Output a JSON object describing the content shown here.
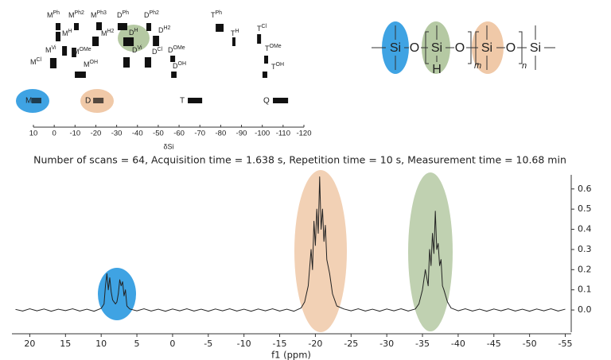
{
  "shift_chart": {
    "xlabel": "δSi",
    "xlim": [
      10,
      -120
    ],
    "xticks": [
      10,
      0,
      -10,
      -20,
      -30,
      -40,
      -50,
      -60,
      -70,
      -80,
      -90,
      -100,
      -110,
      -120
    ],
    "species": [
      {
        "base": "M",
        "sup": "Ph",
        "range": [
          -0.7,
          -3
        ]
      },
      {
        "base": "M",
        "sup": "Ph2",
        "range": [
          -9.5,
          -11.8
        ]
      },
      {
        "base": "M",
        "sup": "Ph3",
        "range": [
          -20.2,
          -22.9
        ]
      },
      {
        "base": "D",
        "sup": "Ph",
        "range": [
          -30.5,
          -35.1
        ]
      },
      {
        "base": "D",
        "sup": "Ph2",
        "range": [
          -44.3,
          -46.6
        ]
      },
      {
        "base": "T",
        "sup": "Ph",
        "range": [
          -77.6,
          -81.4
        ]
      },
      {
        "base": "M",
        "sup": "H",
        "range": [
          -0.7,
          -3
        ]
      },
      {
        "base": "M",
        "sup": "H2",
        "range": [
          -18.3,
          -21.4
        ]
      },
      {
        "base": "D",
        "sup": "H",
        "range": [
          -33.2,
          -38.2
        ]
      },
      {
        "base": "D",
        "sup": "H2",
        "range": [
          -47.4,
          -50.4
        ]
      },
      {
        "base": "T",
        "sup": "H",
        "range": [
          -85.6,
          -87.1
        ]
      },
      {
        "base": "T",
        "sup": "Cl",
        "range": [
          -97.5,
          -99.4
        ]
      },
      {
        "base": "M",
        "sup": "Vi",
        "range": [
          -3.8,
          -6.1
        ]
      },
      {
        "base": "M",
        "sup": "OMe",
        "range": [
          -8.4,
          -10.6
        ]
      },
      {
        "base": "M",
        "sup": "Cl",
        "range": [
          2,
          -1.1
        ]
      },
      {
        "base": "M",
        "sup": "OH",
        "range": [
          -9.9,
          -15.2
        ]
      },
      {
        "base": "D",
        "sup": "Vi",
        "range": [
          -33.2,
          -36.3
        ]
      },
      {
        "base": "D",
        "sup": "Cl",
        "range": [
          -43.5,
          -46.6
        ]
      },
      {
        "base": "D",
        "sup": "OMe",
        "range": [
          -55.8,
          -58.1
        ]
      },
      {
        "base": "D",
        "sup": "OH",
        "range": [
          -56.2,
          -58.8
        ]
      },
      {
        "base": "T",
        "sup": "OMe",
        "range": [
          -100.9,
          -102.8
        ]
      },
      {
        "base": "T",
        "sup": "OH",
        "range": [
          -100.1,
          -102.4
        ]
      }
    ],
    "groups": [
      {
        "label": "M",
        "range": [
          10.8,
          6.2
        ]
      },
      {
        "label": "D",
        "range": [
          -18.7,
          -23.7
        ]
      },
      {
        "label": "T",
        "range": [
          -64.2,
          -71.1
        ]
      },
      {
        "label": "Q",
        "range": [
          -105.1,
          -112.4
        ]
      }
    ]
  },
  "structure": {
    "atoms": [
      "Si",
      "O",
      "Si",
      "O",
      "Si",
      "O",
      "Si"
    ],
    "substituent": "H",
    "subscripts": [
      "m",
      "n"
    ]
  },
  "chart_data": {
    "type": "line",
    "title": "Number of scans = 64, Acquisition time = 1.638 s, Repetition time = 10 s, Measurement time = 10.68 min",
    "xlabel": "f1 (ppm)",
    "xlim": [
      22.5,
      -55.5
    ],
    "ylim": [
      -0.11,
      0.67
    ],
    "xticks": [
      20,
      15,
      10,
      5,
      0,
      -5,
      -10,
      -15,
      -20,
      -25,
      -30,
      -35,
      -40,
      -45,
      -50,
      -55
    ],
    "yticks": [
      {
        "value": 0,
        "label": "0.0"
      },
      0.1,
      0.2,
      0.3,
      0.4,
      0.5,
      0.6
    ],
    "series": [
      {
        "color": "#222222",
        "x": [
          22,
          21,
          20,
          19,
          18,
          17,
          16,
          15,
          14,
          13,
          12,
          11,
          10,
          9.6,
          9.4,
          9.2,
          9.0,
          8.8,
          8.6,
          8.4,
          8.2,
          8.0,
          7.8,
          7.6,
          7.4,
          7.2,
          7.0,
          6.8,
          6.6,
          6.4,
          6.0,
          5,
          4,
          3,
          2,
          1,
          0,
          -1,
          -2,
          -3,
          -4,
          -5,
          -6,
          -7,
          -8,
          -9,
          -10,
          -11,
          -12,
          -13,
          -14,
          -15,
          -16,
          -17,
          -18,
          -18.5,
          -19,
          -19.4,
          -19.6,
          -19.8,
          -20,
          -20.2,
          -20.4,
          -20.6,
          -20.8,
          -21,
          -21.2,
          -21.4,
          -21.6,
          -22,
          -22.4,
          -23,
          -24,
          -25,
          -26,
          -27,
          -28,
          -29,
          -30,
          -31,
          -32,
          -33,
          -34,
          -34.5,
          -35,
          -35.4,
          -35.8,
          -36,
          -36.2,
          -36.4,
          -36.6,
          -36.8,
          -37,
          -37.2,
          -37.4,
          -37.6,
          -37.8,
          -38,
          -38.5,
          -39,
          -40,
          -41,
          -42,
          -43,
          -44,
          -45,
          -46,
          -47,
          -48,
          -49,
          -50,
          -51,
          -52,
          -53,
          -54,
          -55
        ],
        "values": [
          0.003,
          -0.005,
          0.006,
          -0.004,
          0.005,
          -0.006,
          0.004,
          -0.003,
          0.006,
          -0.005,
          0.004,
          -0.006,
          0.008,
          0.03,
          0.12,
          0.18,
          0.1,
          0.16,
          0.09,
          0.05,
          0.04,
          0.03,
          0.04,
          0.08,
          0.15,
          0.12,
          0.14,
          0.07,
          0.1,
          0.02,
          0.005,
          -0.004,
          0.006,
          -0.005,
          0.004,
          -0.006,
          0.005,
          -0.004,
          0.006,
          -0.005,
          0.004,
          -0.006,
          0.005,
          -0.004,
          0.006,
          -0.005,
          0.004,
          -0.006,
          0.005,
          -0.004,
          0.006,
          -0.005,
          0.004,
          -0.006,
          0.01,
          0.04,
          0.12,
          0.3,
          0.2,
          0.44,
          0.32,
          0.5,
          0.38,
          0.66,
          0.4,
          0.5,
          0.34,
          0.42,
          0.25,
          0.18,
          0.08,
          0.02,
          0.005,
          -0.004,
          0.006,
          -0.005,
          0.004,
          -0.006,
          0.005,
          -0.004,
          0.006,
          -0.005,
          0.005,
          0.03,
          0.1,
          0.2,
          0.12,
          0.3,
          0.22,
          0.38,
          0.28,
          0.49,
          0.3,
          0.33,
          0.22,
          0.25,
          0.12,
          0.1,
          0.04,
          0.01,
          -0.004,
          0.006,
          -0.005,
          0.004,
          -0.006,
          0.005,
          -0.004,
          0.006,
          -0.005,
          0.004,
          -0.006,
          0.005,
          -0.004,
          0.006,
          -0.005,
          0.004
        ]
      }
    ]
  }
}
